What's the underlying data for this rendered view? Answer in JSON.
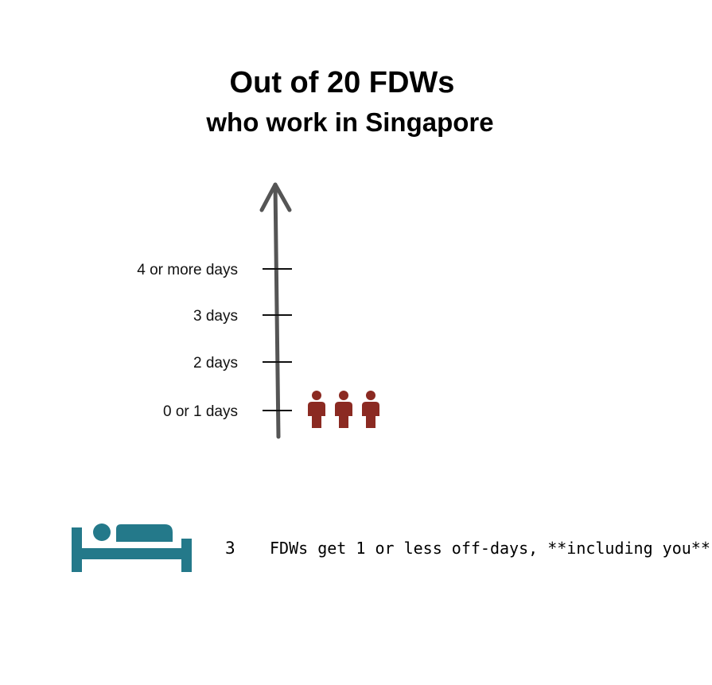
{
  "header": {
    "title": "Out of 20 FDWs",
    "subtitle": "who work in Singapore"
  },
  "chart_data": {
    "type": "pictograph",
    "title": "Out of 20 FDWs",
    "subtitle": "who work in Singapore",
    "categories": [
      "0 or 1 days",
      "2 days",
      "3 days",
      "4 or more days"
    ],
    "values": [
      3,
      0,
      0,
      0
    ],
    "total": 20,
    "icon": "person-icon",
    "icon_color": "#8b2a22",
    "axis_color": "#555555"
  },
  "summary": {
    "icon": "bed-icon",
    "icon_color": "#24798a",
    "count": "3",
    "text": "FDWs get 1 or less off-days, **including you**"
  }
}
